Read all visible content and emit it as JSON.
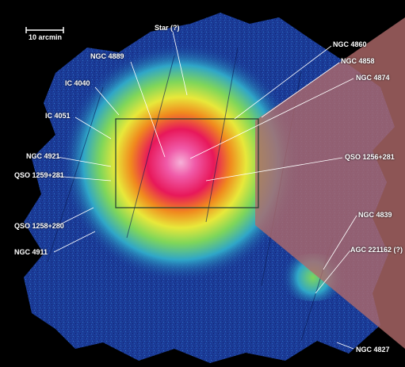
{
  "scale_bar": {
    "label": "10 arcmin"
  },
  "labels": {
    "star": "Star (?)",
    "ngc4889": "NGC 4889",
    "ic4040": "IC 4040",
    "ic4051": "IC 4051",
    "ngc4921": "NGC 4921",
    "qso1259": "QSO 1259+281",
    "qso1258": "QSO 1258+280",
    "ngc4911": "NGC 4911",
    "ngc4860": "NGC 4860",
    "ngc4858": "NGC 4858",
    "ngc4874": "NGC 4874",
    "qso1256": "QSO 1256+281",
    "ngc4839": "NGC 4839",
    "agc221162": "AGC 221162 (?)",
    "ngc4827": "NGC 4827"
  },
  "colors": {
    "background": "#000000",
    "outer_emission": "#1a3f9c",
    "mid_emission": "#2fa6c8",
    "green_band": "#7fd65a",
    "yellow_band": "#e8e83a",
    "orange_band": "#f08a1e",
    "core_red": "#e8185a",
    "core_pink": "#f05aa8",
    "wedge": "#b06a6a",
    "box_outline": "#203c30"
  }
}
